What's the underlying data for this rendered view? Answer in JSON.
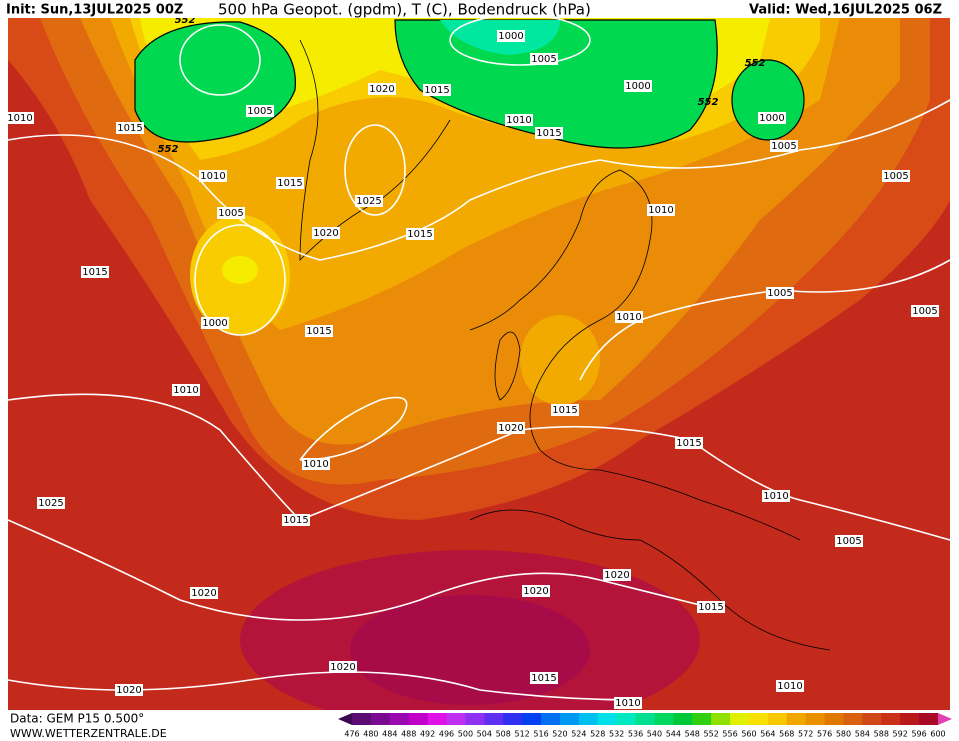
{
  "header": {
    "init": "Init: Sun,13JUL2025 00Z",
    "title": "500 hPa Geopot. (gpdm), T (C), Bodendruck (hPa)",
    "valid": "Valid: Wed,16JUL2025 06Z"
  },
  "isobar_labels": [
    552,
    1000,
    1005,
    1000,
    552,
    1000,
    552,
    1010,
    1015,
    552,
    1005,
    1020,
    1015,
    1010,
    1015,
    1005,
    1005,
    1010,
    1015,
    1025,
    1005,
    1010,
    1020,
    1015,
    1015,
    1005,
    1005,
    1000,
    1015,
    1010,
    1010,
    1015,
    1020,
    1015,
    1010,
    1010,
    1025,
    1015,
    1005,
    1020,
    1020,
    1020,
    1015,
    1020,
    1015,
    1020,
    1010,
    1010
  ],
  "legend": {
    "labels": [
      476,
      480,
      484,
      488,
      492,
      496,
      500,
      504,
      508,
      512,
      516,
      520,
      524,
      528,
      532,
      536,
      540,
      544,
      548,
      552,
      556,
      560,
      564,
      568,
      572,
      576,
      580,
      584,
      588,
      592,
      596,
      600
    ],
    "colors": [
      "#3a0850",
      "#5a0a70",
      "#7a0a90",
      "#9a08b0",
      "#c000c8",
      "#e010e8",
      "#c030f0",
      "#9030f0",
      "#6030f0",
      "#3030f0",
      "#0040f0",
      "#0070f0",
      "#0098f0",
      "#00c0f0",
      "#00e0e8",
      "#00e8c0",
      "#00e090",
      "#00d860",
      "#00c838",
      "#30d010",
      "#90e000",
      "#e0f000",
      "#f8e000",
      "#f8c800",
      "#f0a800",
      "#e89000",
      "#e07800",
      "#d86010",
      "#d04818",
      "#c83018",
      "#b81818",
      "#a80828",
      "#e040b0"
    ]
  },
  "footer": {
    "data": "Data: GEM P15 0.500°",
    "site": "WWW.WETTERZENTRALE.DE"
  }
}
